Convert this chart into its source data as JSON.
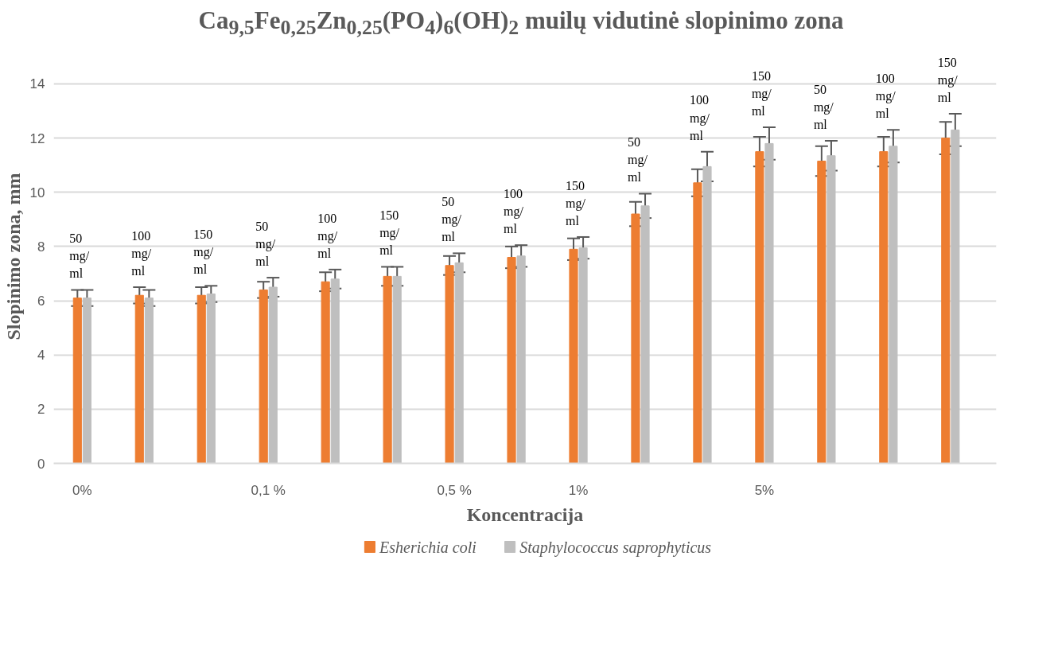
{
  "chart_data": {
    "type": "bar",
    "title": "Ca$_{9,5}$Fe$_{0,25}$Zn$_{0,25}$(PO$_{4}$)$_{6}$(OH)$_{2}$ muilų vidutinė slopinimo zona",
    "xlabel": "Koncentracija",
    "ylabel": "Slopinimo zona, mm",
    "categories": [
      "0%",
      null,
      null,
      "0,1 %",
      null,
      null,
      "0,5 %",
      null,
      "1%",
      null,
      null,
      "5%",
      null,
      null,
      null
    ],
    "ylim": [
      0,
      14
    ],
    "yticks": [
      0,
      2,
      4,
      6,
      8,
      10,
      12,
      14
    ],
    "grid": "y",
    "legend": "bottom",
    "series": [
      {
        "name": "Esherichia coli",
        "color": "#ed7d31",
        "values": [
          6.1,
          6.2,
          6.2,
          6.4,
          6.7,
          6.9,
          7.3,
          7.6,
          7.9,
          9.2,
          10.35,
          11.5,
          11.15,
          11.5,
          12.0
        ],
        "errors": [
          0.3,
          0.3,
          0.3,
          0.3,
          0.35,
          0.35,
          0.35,
          0.4,
          0.4,
          0.45,
          0.5,
          0.55,
          0.55,
          0.55,
          0.6
        ]
      },
      {
        "name": "Staphylococcus saprophyticus",
        "color": "#bfbfbf",
        "values": [
          6.1,
          6.1,
          6.25,
          6.5,
          6.8,
          6.9,
          7.4,
          7.65,
          7.95,
          9.5,
          10.95,
          11.8,
          11.35,
          11.7,
          12.3
        ],
        "errors": [
          0.3,
          0.3,
          0.3,
          0.35,
          0.35,
          0.35,
          0.35,
          0.4,
          0.4,
          0.45,
          0.55,
          0.6,
          0.55,
          0.6,
          0.6
        ]
      }
    ],
    "annotations": [
      "50\nmg/\nml",
      "100\nmg/\nml",
      "150\nmg/\nml",
      "50\nmg/\nml",
      "100\nmg/\nml",
      "150\nmg/\nml",
      "50\nmg/\nml",
      "100\nmg/\nml",
      "150\nmg/\nml",
      "50\nmg/\nml",
      "100\nmg/\nml",
      "150\nmg/\nml",
      "50\nmg/\nml",
      "100\nmg/\nml",
      "150\nmg/\nml"
    ]
  }
}
